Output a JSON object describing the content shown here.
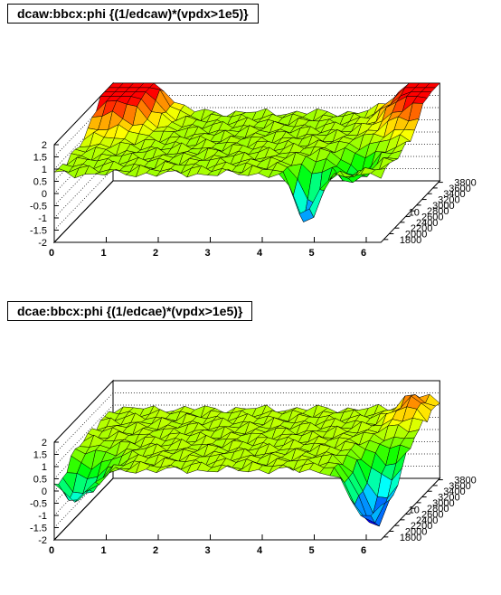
{
  "chart_data": [
    {
      "type": "surface",
      "title": "dcaw:bbcx:phi {(1/edcaw)*(vpdx>1e5)}",
      "xlabel": "",
      "ylabel": "",
      "zlabel": "",
      "x_range": [
        0,
        6.2832
      ],
      "y_range": [
        1700,
        3850
      ],
      "z_range": [
        -2,
        2
      ],
      "x_ticks": [
        "0",
        "1",
        "2",
        "3",
        "4",
        "5",
        "6"
      ],
      "y_ticks": [
        "1800",
        "2000",
        "2200",
        "2400",
        "2600",
        "2800",
        "3000",
        "3200",
        "3400",
        "3600",
        "3800"
      ],
      "y_multiplier": "10",
      "z_ticks": [
        "-2",
        "-1.5",
        "-1",
        "-0.5",
        "0",
        "0.5",
        "1",
        "1.5",
        "2"
      ],
      "nx": 32,
      "ny": 14,
      "baseline": 0.8,
      "features": [
        {
          "x": 0.35,
          "y": 3850,
          "height": 2.7,
          "sx": 0.45,
          "sy": 500
        },
        {
          "x": 6.1,
          "y": 3850,
          "height": 2.2,
          "sx": 0.45,
          "sy": 500
        },
        {
          "x": 4.8,
          "y": 1850,
          "height": -2.4,
          "sx": 0.2,
          "sy": 180
        },
        {
          "x": 5.5,
          "y": 2300,
          "height": -1.0,
          "sx": 0.25,
          "sy": 250
        }
      ],
      "grid": true
    },
    {
      "type": "surface",
      "title": "dcae:bbcx:phi {(1/edcae)*(vpdx>1e5)}",
      "xlabel": "",
      "ylabel": "",
      "zlabel": "",
      "x_range": [
        0,
        6.2832
      ],
      "y_range": [
        1700,
        3850
      ],
      "z_range": [
        -2,
        2
      ],
      "x_ticks": [
        "0",
        "1",
        "2",
        "3",
        "4",
        "5",
        "6"
      ],
      "y_ticks": [
        "1800",
        "2000",
        "2200",
        "2400",
        "2600",
        "2800",
        "3000",
        "3200",
        "3400",
        "3600",
        "3800"
      ],
      "y_multiplier": "10",
      "z_ticks": [
        "-2",
        "-1.5",
        "-1",
        "-0.5",
        "0",
        "0.5",
        "1",
        "1.5",
        "2"
      ],
      "nx": 32,
      "ny": 14,
      "baseline": 0.85,
      "features": [
        {
          "x": 0.3,
          "y": 1850,
          "height": -1.0,
          "sx": 0.3,
          "sy": 250
        },
        {
          "x": 0.5,
          "y": 2000,
          "height": -0.6,
          "sx": 0.35,
          "sy": 300
        },
        {
          "x": 6.0,
          "y": 2000,
          "height": -2.6,
          "sx": 0.3,
          "sy": 400
        },
        {
          "x": 5.9,
          "y": 3600,
          "height": 0.8,
          "sx": 0.25,
          "sy": 300
        }
      ],
      "grid": true
    }
  ]
}
